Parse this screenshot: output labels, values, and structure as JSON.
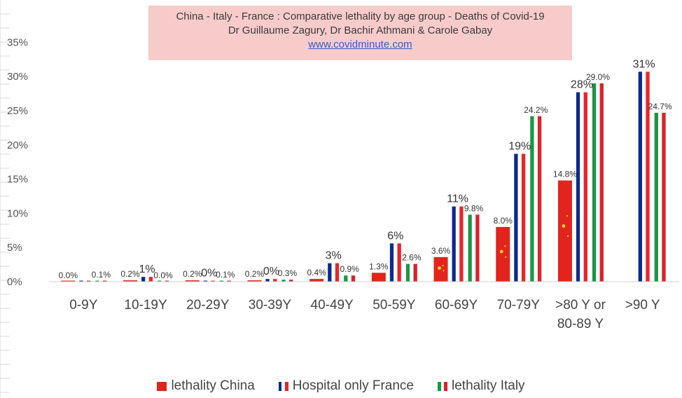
{
  "title": {
    "line1": "China - Italy - France : Comparative lethality by age group - Deaths of Covid-19",
    "line2": "Dr Guillaume Zagury, Dr Bachir Athmani & Carole Gabay",
    "link": "www.covidminute.com"
  },
  "colors": {
    "china_red": "#e2251c",
    "china_star": "#f6d233",
    "france_blue": "#0b2a8f",
    "france_red": "#e8262b",
    "italy_green": "#1a9643",
    "italy_red": "#d8232a",
    "white": "#ffffff",
    "title_bg": "#f8cbcb",
    "grid": "#d9d9d9"
  },
  "chart_data": {
    "type": "bar",
    "categories": [
      "0-9Y",
      "10-19Y",
      "20-29Y",
      "30-39Y",
      "40-49Y",
      "50-59Y",
      "60-69Y",
      "70-79Y",
      ">80 Y or\n80-89 Y",
      ">90 Y"
    ],
    "y_ticks": [
      "0%",
      "5%",
      "10%",
      "15%",
      "20%",
      "25%",
      "30%",
      "35%"
    ],
    "ylim": [
      0,
      35
    ],
    "grid": false,
    "legend_position": "bottom",
    "series": [
      {
        "name": "lethality China",
        "flag": "china",
        "values": [
          0.0,
          0.2,
          0.2,
          0.2,
          0.4,
          1.3,
          3.6,
          8.0,
          14.8,
          null
        ],
        "labels": [
          "0.0%",
          "0.2%",
          "0.2%",
          "0.2%",
          "0.4%",
          "1.3%",
          "3.6%",
          "8.0%",
          "14.8%",
          ""
        ]
      },
      {
        "name": "Hospital only France",
        "flag": "france",
        "values": [
          0,
          0.7,
          0.15,
          0.4,
          2.7,
          5.6,
          11,
          18.7,
          27.7,
          30.7
        ],
        "labels": [
          "",
          "1%",
          "0%",
          "0%",
          "3%",
          "6%",
          "11%",
          "19%",
          "28%",
          "31%"
        ]
      },
      {
        "name": "lethality Italy",
        "flag": "italy",
        "values": [
          0.1,
          0.0,
          0.1,
          0.3,
          0.9,
          2.6,
          9.8,
          24.2,
          29.0,
          24.7
        ],
        "labels": [
          "0.1%",
          "0.0%",
          "0.1%",
          "0.3%",
          "0.9%",
          "2.6%",
          "9.8%",
          "24.2%",
          "29.0%",
          "24.7%"
        ]
      }
    ]
  }
}
